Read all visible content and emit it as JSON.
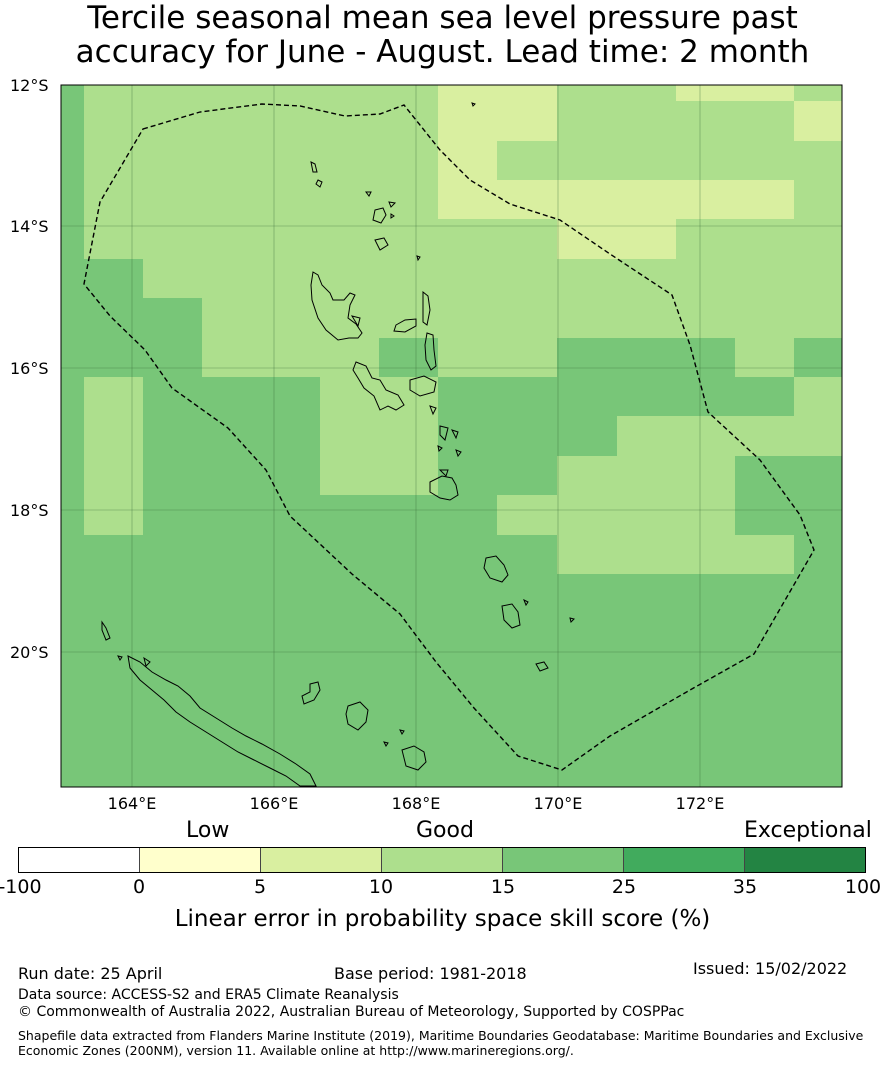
{
  "title_line1": "Tercile seasonal mean sea level pressure past",
  "title_line2": "accuracy for June - August. Lead time: 2 month",
  "map": {
    "lat_labels": [
      "12°S",
      "14°S",
      "16°S",
      "18°S",
      "20°S"
    ],
    "lon_labels": [
      "164°E",
      "166°E",
      "168°E",
      "170°E",
      "172°E"
    ],
    "lon_range": [
      163.0,
      174.0
    ],
    "lat_range": [
      -21.9,
      -12.0
    ],
    "cell_deg": 0.833,
    "colors": {
      "5-10": "#d9efa0",
      "10-15": "#addf8d",
      "15-25": "#78c678"
    }
  },
  "colorbar": {
    "categories": [
      "Low",
      "Good",
      "Exceptional"
    ],
    "ticks": [
      "-100",
      "0",
      "5",
      "10",
      "15",
      "25",
      "35",
      "100"
    ],
    "colors": [
      "#ffffff",
      "#ffffcc",
      "#d9efa0",
      "#addf8d",
      "#78c678",
      "#41ab5d",
      "#238443"
    ],
    "label": "Linear error in probability space skill score (%)"
  },
  "footer": {
    "run_date": "Run date: 25 April",
    "base_period": "Base period: 1981-2018",
    "issued": "Issued: 15/02/2022",
    "data_source": "Data source: ACCESS-S2 and ERA5 Climate Reanalysis",
    "copyright": "© Commonwealth of Australia 2022, Australian Bureau of Meteorology, Supported by COSPPac",
    "shapefile": "Shapefile data extracted from Flanders Marine Institute (2019), Maritime Boundaries Geodatabase: Maritime Boundaries and Exclusive Economic Zones (200NM), version 11. Available online at http://www.marineregions.org/."
  }
}
